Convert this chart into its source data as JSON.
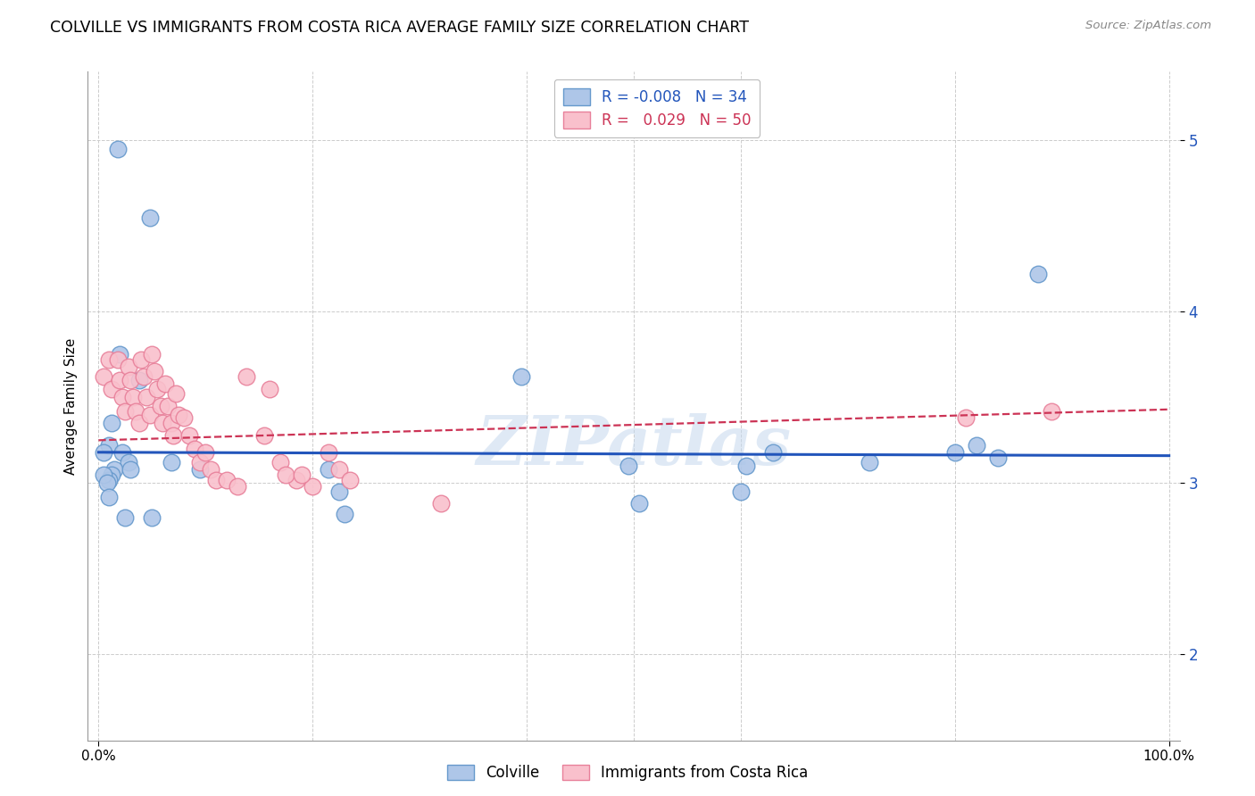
{
  "title": "COLVILLE VS IMMIGRANTS FROM COSTA RICA AVERAGE FAMILY SIZE CORRELATION CHART",
  "source": "Source: ZipAtlas.com",
  "ylabel": "Average Family Size",
  "yticks": [
    2.0,
    3.0,
    4.0,
    5.0
  ],
  "ylim": [
    1.5,
    5.4
  ],
  "xlim": [
    -0.01,
    1.01
  ],
  "colville_color": "#aec6e8",
  "colville_edge": "#6699cc",
  "costa_rica_color": "#f9c0cc",
  "costa_rica_edge": "#e8809a",
  "trendline_colville": "#2255bb",
  "trendline_costa_rica": "#cc3355",
  "legend_colville_R": "-0.008",
  "legend_colville_N": "34",
  "legend_costa_rica_R": "0.029",
  "legend_costa_rica_N": "50",
  "watermark": "ZIPatlas",
  "colville_x": [
    0.018,
    0.048,
    0.02,
    0.012,
    0.01,
    0.022,
    0.028,
    0.015,
    0.012,
    0.01,
    0.005,
    0.005,
    0.008,
    0.01,
    0.038,
    0.03,
    0.025,
    0.068,
    0.095,
    0.05,
    0.215,
    0.225,
    0.23,
    0.395,
    0.495,
    0.505,
    0.6,
    0.605,
    0.63,
    0.72,
    0.8,
    0.82,
    0.878,
    0.84
  ],
  "colville_y": [
    4.95,
    4.55,
    3.75,
    3.35,
    3.22,
    3.18,
    3.12,
    3.08,
    3.05,
    3.02,
    3.18,
    3.05,
    3.0,
    2.92,
    3.6,
    3.08,
    2.8,
    3.12,
    3.08,
    2.8,
    3.08,
    2.95,
    2.82,
    3.62,
    3.1,
    2.88,
    2.95,
    3.1,
    3.18,
    3.12,
    3.18,
    3.22,
    4.22,
    3.15
  ],
  "costa_rica_x": [
    0.005,
    0.01,
    0.012,
    0.018,
    0.02,
    0.022,
    0.025,
    0.028,
    0.03,
    0.032,
    0.035,
    0.038,
    0.04,
    0.042,
    0.045,
    0.048,
    0.05,
    0.052,
    0.055,
    0.058,
    0.06,
    0.062,
    0.065,
    0.068,
    0.07,
    0.072,
    0.075,
    0.08,
    0.085,
    0.09,
    0.095,
    0.1,
    0.105,
    0.11,
    0.12,
    0.13,
    0.138,
    0.155,
    0.17,
    0.185,
    0.2,
    0.215,
    0.225,
    0.235,
    0.16,
    0.175,
    0.19,
    0.32,
    0.89,
    0.81
  ],
  "costa_rica_y": [
    3.62,
    3.72,
    3.55,
    3.72,
    3.6,
    3.5,
    3.42,
    3.68,
    3.6,
    3.5,
    3.42,
    3.35,
    3.72,
    3.62,
    3.5,
    3.4,
    3.75,
    3.65,
    3.55,
    3.45,
    3.35,
    3.58,
    3.45,
    3.35,
    3.28,
    3.52,
    3.4,
    3.38,
    3.28,
    3.2,
    3.12,
    3.18,
    3.08,
    3.02,
    3.02,
    2.98,
    3.62,
    3.28,
    3.12,
    3.02,
    2.98,
    3.18,
    3.08,
    3.02,
    3.55,
    3.05,
    3.05,
    2.88,
    3.42,
    3.38
  ]
}
